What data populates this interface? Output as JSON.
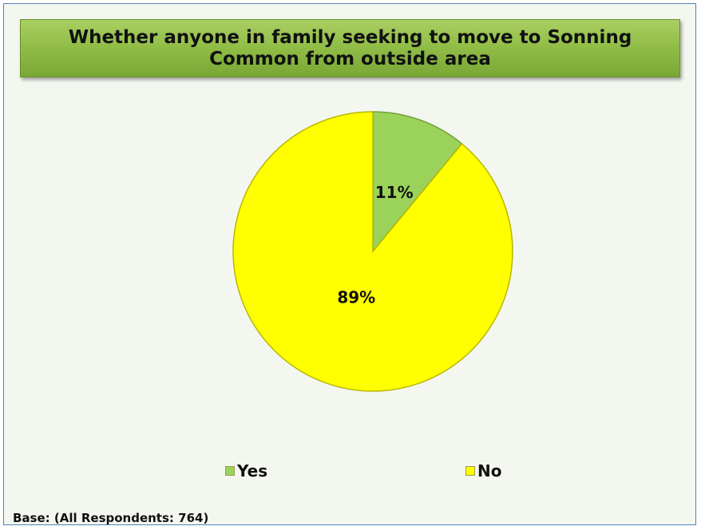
{
  "chart_data": {
    "type": "pie",
    "title": "Whether anyone in family seeking to move to Sonning Common from outside area",
    "slices": [
      {
        "name": "Yes",
        "value": 11,
        "label": "11%",
        "color": "#9bd35a"
      },
      {
        "name": "No",
        "value": 89,
        "label": "89%",
        "color": "#ffff00"
      }
    ],
    "legend": "bottom",
    "note": "Base: (All Respondents: 764)"
  }
}
